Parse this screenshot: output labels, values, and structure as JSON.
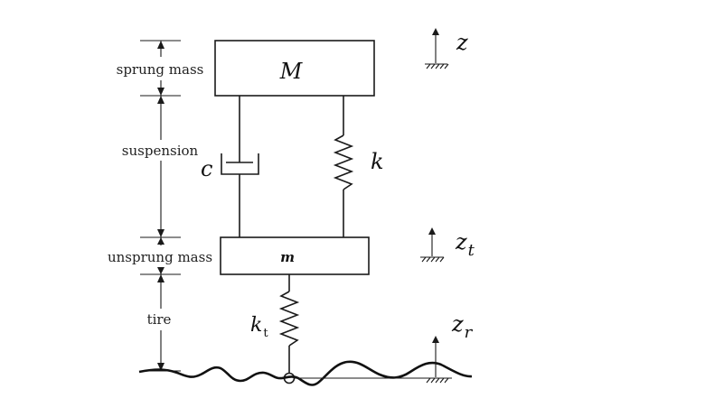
{
  "dimension_labels": {
    "sprung_mass": "sprung mass",
    "suspension": "suspension",
    "unsprung_mass": "unsprung mass",
    "tire": "tire"
  },
  "sprung_mass_symbol": "M",
  "unsprung_mass_symbol": "m",
  "damper_symbol": "c",
  "spring_symbol": "k",
  "tire_spring": {
    "base": "k",
    "subscript": "t"
  },
  "displacements": {
    "sprung": {
      "base": "z",
      "subscript": ""
    },
    "unsprung": {
      "base": "z",
      "subscript": "t"
    },
    "road": {
      "base": "z",
      "subscript": "r"
    }
  }
}
